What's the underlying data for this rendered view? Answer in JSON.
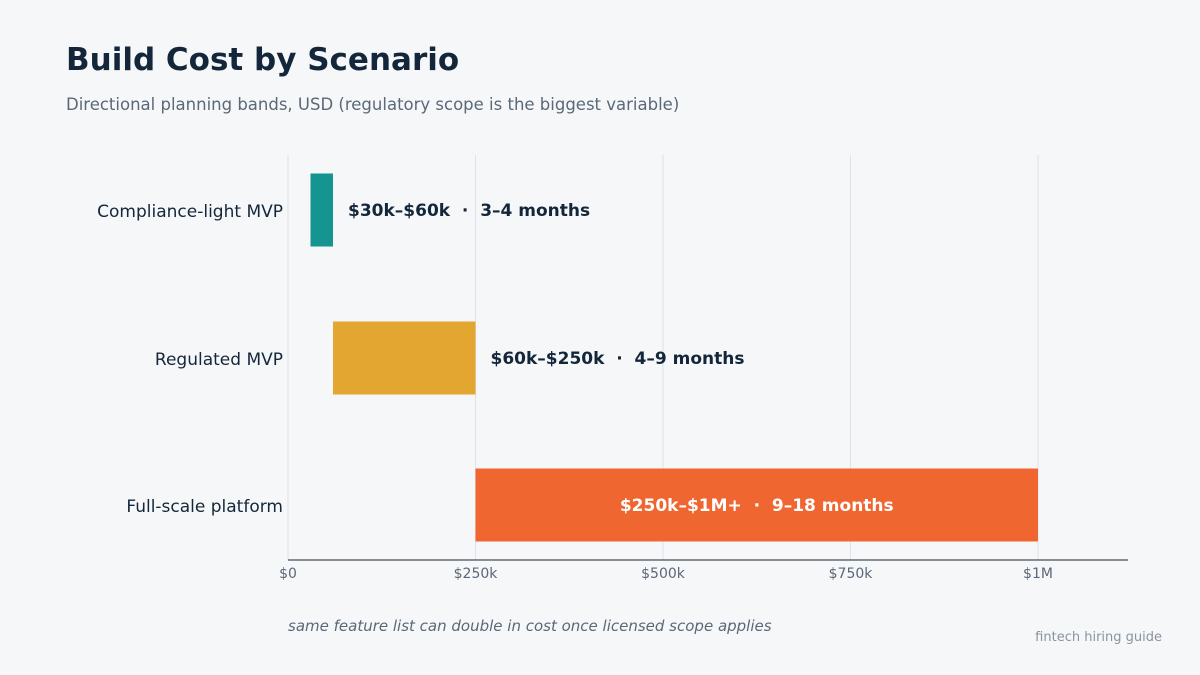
{
  "header": {
    "title": "Build Cost by Scenario",
    "subtitle": "Directional planning bands, USD (regulatory scope is the biggest variable)"
  },
  "footer": {
    "note": "same feature list can double in cost once licensed scope applies",
    "source": "fintech hiring guide"
  },
  "colors": {
    "background": "#f6f7f9",
    "text_dark": "#14273a",
    "text_muted": "#5b6878",
    "grid": "#dfe2e6",
    "axis": "#14273a"
  },
  "chart_data": {
    "type": "bar",
    "orientation": "horizontal",
    "title": "Build Cost by Scenario",
    "subtitle": "Directional planning bands, USD (regulatory scope is the biggest variable)",
    "xlabel": "",
    "ylabel": "",
    "xlim": [
      0,
      1120000
    ],
    "grid": true,
    "legend": "none",
    "categories": [
      "Compliance-light MVP",
      "Regulated MVP",
      "Full-scale platform"
    ],
    "ranges": [
      {
        "category": "Compliance-light MVP",
        "start": 30000,
        "end": 60000,
        "label": "$30k–$60k  ·  3–4 months",
        "color": "#14958f",
        "label_position": "outside"
      },
      {
        "category": "Regulated MVP",
        "start": 60000,
        "end": 250000,
        "label": "$60k–$250k  ·  4–9 months",
        "color": "#e3a731",
        "label_position": "outside"
      },
      {
        "category": "Full-scale platform",
        "start": 250000,
        "end": 1000000,
        "label": "$250k–$1M+  ·  9–18 months",
        "color": "#f06630",
        "label_position": "inside"
      }
    ],
    "xticks": [
      {
        "value": 0,
        "label": "$0"
      },
      {
        "value": 250000,
        "label": "$250k"
      },
      {
        "value": 500000,
        "label": "$500k"
      },
      {
        "value": 750000,
        "label": "$750k"
      },
      {
        "value": 1000000,
        "label": "$1M"
      }
    ]
  }
}
